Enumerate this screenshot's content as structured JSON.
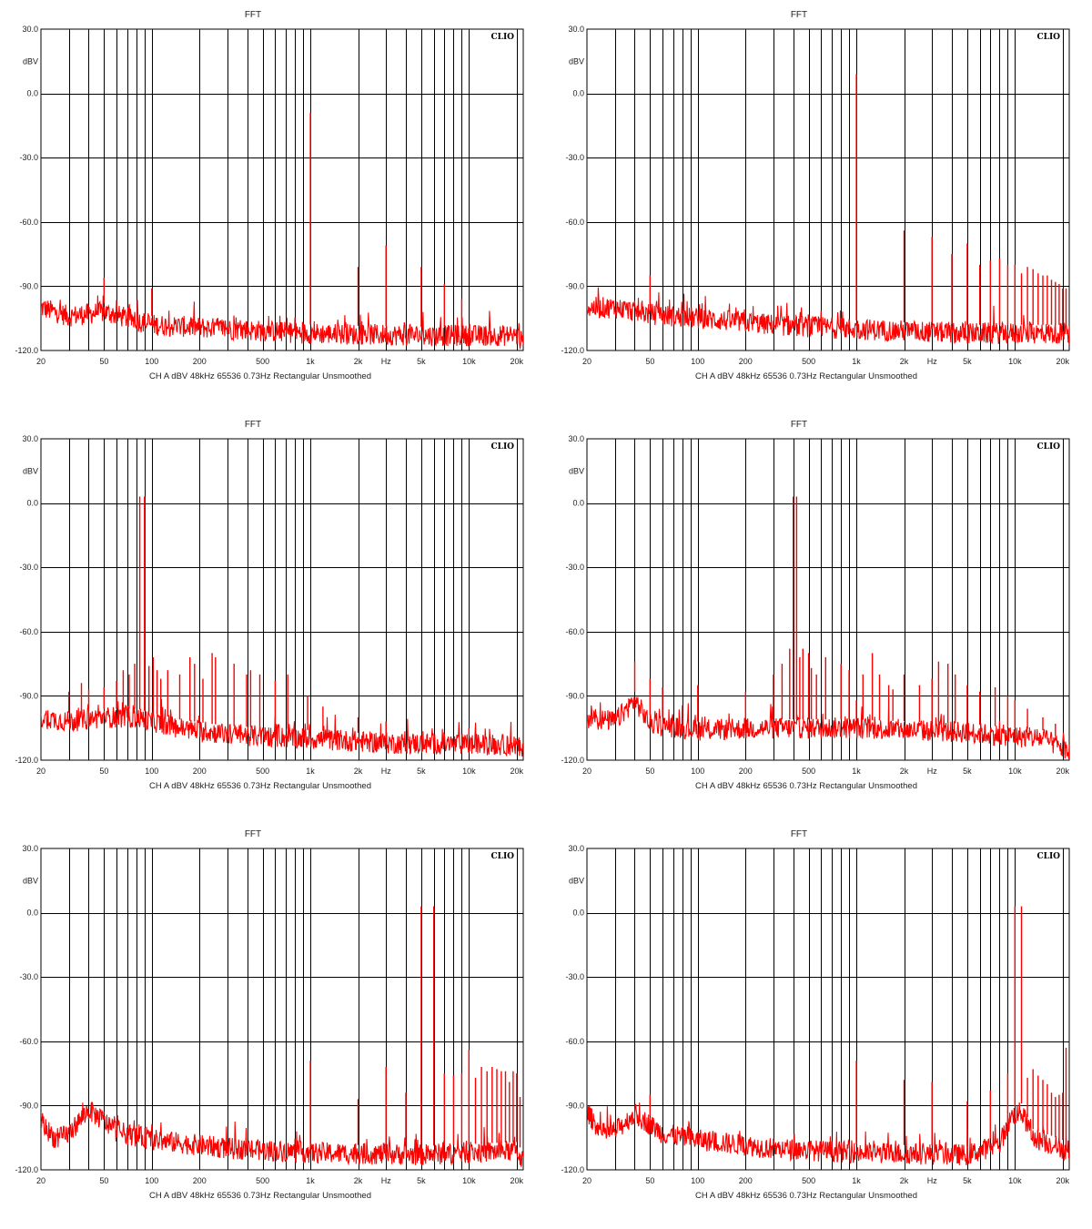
{
  "common": {
    "title": "FFT",
    "brand": "CLIO",
    "y_unit": "dBV",
    "info": [
      "CH A",
      "dBV",
      "48kHz",
      "65536",
      "0.73Hz",
      "Rectangular",
      "Unsmoothed"
    ],
    "x_ticks": [
      "20",
      "50",
      "100",
      "200",
      "500",
      "1k",
      "2k",
      "Hz",
      "5k",
      "10k",
      "20k"
    ],
    "y_ticks": [
      "30.0",
      "0.0",
      "-30.0",
      "-60.0",
      "-90.0",
      "-120.0"
    ],
    "trace_color": "#ff0000",
    "grid_color": "#000000"
  },
  "chart_data": [
    {
      "type": "line",
      "title": "FFT",
      "xscale": "log",
      "xlim": [
        20,
        22000
      ],
      "ylim": [
        -120,
        30
      ],
      "grid": true,
      "noise": [
        [
          20,
          -100
        ],
        [
          30,
          -104
        ],
        [
          50,
          -102
        ],
        [
          100,
          -108
        ],
        [
          300,
          -110
        ],
        [
          1000,
          -112
        ],
        [
          5000,
          -113
        ],
        [
          20000,
          -113
        ],
        [
          22000,
          -117
        ]
      ],
      "spikes": [
        [
          50,
          -86
        ],
        [
          100,
          -91
        ],
        [
          1000,
          -9
        ],
        [
          2000,
          -81
        ],
        [
          3000,
          -71
        ],
        [
          5000,
          -81
        ],
        [
          7000,
          -89
        ],
        [
          9000,
          -96
        ]
      ]
    },
    {
      "type": "line",
      "title": "FFT",
      "xscale": "log",
      "xlim": [
        20,
        22000
      ],
      "ylim": [
        -120,
        30
      ],
      "grid": true,
      "noise": [
        [
          20,
          -100
        ],
        [
          30,
          -100
        ],
        [
          50,
          -103
        ],
        [
          100,
          -105
        ],
        [
          300,
          -108
        ],
        [
          1000,
          -110
        ],
        [
          5000,
          -112
        ],
        [
          20000,
          -112
        ],
        [
          22000,
          -113
        ]
      ],
      "spikes": [
        [
          50,
          -85
        ],
        [
          1000,
          9
        ],
        [
          2000,
          -64
        ],
        [
          3000,
          -67
        ],
        [
          4000,
          -75
        ],
        [
          5000,
          -70
        ],
        [
          6000,
          -80
        ],
        [
          7000,
          -78
        ],
        [
          8000,
          -77
        ],
        [
          9000,
          -80
        ],
        [
          10000,
          -80
        ],
        [
          11000,
          -84
        ],
        [
          12000,
          -81
        ],
        [
          13000,
          -82
        ],
        [
          14000,
          -84
        ],
        [
          15000,
          -85
        ],
        [
          16000,
          -85
        ],
        [
          17000,
          -87
        ],
        [
          18000,
          -88
        ],
        [
          19000,
          -89
        ],
        [
          20000,
          -91
        ],
        [
          21000,
          -91
        ]
      ]
    },
    {
      "type": "line",
      "title": "FFT",
      "xscale": "log",
      "xlim": [
        20,
        22000
      ],
      "ylim": [
        -120,
        30
      ],
      "grid": true,
      "noise": [
        [
          20,
          -100
        ],
        [
          30,
          -102
        ],
        [
          50,
          -100
        ],
        [
          80,
          -100
        ],
        [
          150,
          -105
        ],
        [
          300,
          -108
        ],
        [
          1000,
          -110
        ],
        [
          3000,
          -112
        ],
        [
          20000,
          -113
        ],
        [
          22000,
          -117
        ]
      ],
      "spikes": [
        [
          30,
          -88
        ],
        [
          36,
          -84
        ],
        [
          40,
          -87
        ],
        [
          50,
          -86
        ],
        [
          60,
          -83
        ],
        [
          66,
          -78
        ],
        [
          72,
          -80
        ],
        [
          78,
          -75
        ],
        [
          84,
          3
        ],
        [
          90,
          3
        ],
        [
          96,
          -76
        ],
        [
          102,
          -72
        ],
        [
          108,
          -78
        ],
        [
          114,
          -82
        ],
        [
          126,
          -78
        ],
        [
          150,
          -80
        ],
        [
          174,
          -72
        ],
        [
          186,
          -75
        ],
        [
          210,
          -82
        ],
        [
          240,
          -70
        ],
        [
          252,
          -72
        ],
        [
          330,
          -75
        ],
        [
          396,
          -80
        ],
        [
          420,
          -78
        ],
        [
          480,
          -80
        ],
        [
          600,
          -83
        ],
        [
          720,
          -80
        ],
        [
          960,
          -90
        ],
        [
          1200,
          -95
        ],
        [
          2000,
          -100
        ],
        [
          3000,
          -102
        ],
        [
          10000,
          -105
        ]
      ]
    },
    {
      "type": "line",
      "title": "FFT",
      "xscale": "log",
      "xlim": [
        20,
        22000
      ],
      "ylim": [
        -120,
        30
      ],
      "grid": true,
      "noise": [
        [
          20,
          -100
        ],
        [
          30,
          -102
        ],
        [
          40,
          -92
        ],
        [
          50,
          -103
        ],
        [
          100,
          -106
        ],
        [
          300,
          -105
        ],
        [
          1000,
          -105
        ],
        [
          5000,
          -107
        ],
        [
          15000,
          -110
        ],
        [
          22000,
          -116
        ]
      ],
      "spikes": [
        [
          40,
          -74
        ],
        [
          50,
          -82
        ],
        [
          60,
          -86
        ],
        [
          100,
          -85
        ],
        [
          200,
          -88
        ],
        [
          300,
          -80
        ],
        [
          340,
          -75
        ],
        [
          380,
          -68
        ],
        [
          400,
          3
        ],
        [
          420,
          3
        ],
        [
          440,
          -72
        ],
        [
          460,
          -68
        ],
        [
          500,
          -70
        ],
        [
          520,
          -77
        ],
        [
          560,
          -80
        ],
        [
          640,
          -72
        ],
        [
          800,
          -75
        ],
        [
          900,
          -78
        ],
        [
          1000,
          -92
        ],
        [
          1100,
          -80
        ],
        [
          1260,
          -70
        ],
        [
          1400,
          -80
        ],
        [
          1600,
          -85
        ],
        [
          1700,
          -87
        ],
        [
          2000,
          -80
        ],
        [
          2500,
          -85
        ],
        [
          3000,
          -82
        ],
        [
          3300,
          -74
        ],
        [
          3780,
          -75
        ],
        [
          4200,
          -80
        ],
        [
          5000,
          -85
        ],
        [
          6000,
          -88
        ],
        [
          7500,
          -86
        ],
        [
          9000,
          -90
        ],
        [
          10000,
          -92
        ],
        [
          12000,
          -96
        ],
        [
          15000,
          -100
        ],
        [
          18000,
          -103
        ]
      ]
    },
    {
      "type": "line",
      "title": "FFT",
      "xscale": "log",
      "xlim": [
        20,
        22000
      ],
      "ylim": [
        -120,
        30
      ],
      "grid": true,
      "noise": [
        [
          20,
          -98
        ],
        [
          25,
          -106
        ],
        [
          30,
          -103
        ],
        [
          40,
          -92
        ],
        [
          60,
          -102
        ],
        [
          100,
          -106
        ],
        [
          300,
          -110
        ],
        [
          1000,
          -112
        ],
        [
          5000,
          -113
        ],
        [
          10000,
          -112
        ],
        [
          20000,
          -111
        ],
        [
          22000,
          -116
        ]
      ],
      "spikes": [
        [
          50,
          -93
        ],
        [
          1000,
          -69
        ],
        [
          2000,
          -87
        ],
        [
          3000,
          -72
        ],
        [
          4000,
          -84
        ],
        [
          5000,
          3
        ],
        [
          6000,
          3
        ],
        [
          7000,
          -75
        ],
        [
          8000,
          -76
        ],
        [
          9000,
          -75
        ],
        [
          10000,
          -64
        ],
        [
          11000,
          -77
        ],
        [
          12000,
          -72
        ],
        [
          13000,
          -74
        ],
        [
          14000,
          -72
        ],
        [
          15000,
          -73
        ],
        [
          16000,
          -74
        ],
        [
          17000,
          -74
        ],
        [
          18000,
          -79
        ],
        [
          19000,
          -74
        ],
        [
          20000,
          -75
        ],
        [
          21000,
          -86
        ]
      ]
    },
    {
      "type": "line",
      "title": "FFT",
      "xscale": "log",
      "xlim": [
        20,
        22000
      ],
      "ylim": [
        -120,
        30
      ],
      "grid": true,
      "noise": [
        [
          20,
          -93
        ],
        [
          25,
          -103
        ],
        [
          30,
          -102
        ],
        [
          40,
          -94
        ],
        [
          60,
          -103
        ],
        [
          100,
          -106
        ],
        [
          300,
          -110
        ],
        [
          1000,
          -112
        ],
        [
          5000,
          -113
        ],
        [
          8000,
          -108
        ],
        [
          9500,
          -95
        ],
        [
          11000,
          -93
        ],
        [
          13000,
          -105
        ],
        [
          20000,
          -110
        ],
        [
          22000,
          -116
        ]
      ],
      "spikes": [
        [
          50,
          -85
        ],
        [
          1000,
          -69
        ],
        [
          2000,
          -78
        ],
        [
          3000,
          -79
        ],
        [
          5000,
          -88
        ],
        [
          7000,
          -83
        ],
        [
          9000,
          -75
        ],
        [
          10000,
          3
        ],
        [
          11000,
          3
        ],
        [
          12000,
          -77
        ],
        [
          13000,
          -73
        ],
        [
          14000,
          -76
        ],
        [
          15000,
          -78
        ],
        [
          16000,
          -80
        ],
        [
          17000,
          -84
        ],
        [
          18000,
          -86
        ],
        [
          19000,
          -85
        ],
        [
          20000,
          -84
        ],
        [
          21000,
          -63
        ]
      ]
    }
  ]
}
